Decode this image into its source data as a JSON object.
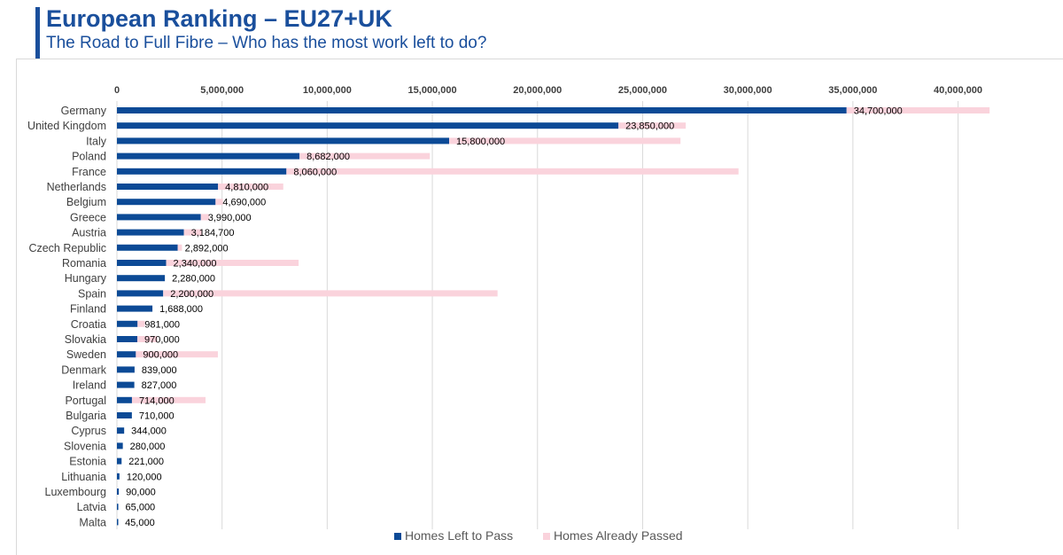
{
  "title": "European Ranking – EU27+UK",
  "subtitle": "The Road to Full Fibre – Who has the most work left to do?",
  "colors": {
    "accent": "#1a4f9c",
    "left_to_pass": "#0c4a96",
    "already_passed": "#fad3dc",
    "gridline": "#d9d9d9",
    "text": "#3f3f3f"
  },
  "chart_data": {
    "type": "bar",
    "orientation": "horizontal",
    "stacked": true,
    "title": "",
    "xlabel": "",
    "ylabel": "",
    "xlim": [
      0,
      42000000
    ],
    "xticks": [
      0,
      5000000,
      10000000,
      15000000,
      20000000,
      25000000,
      30000000,
      35000000,
      40000000
    ],
    "xtick_labels": [
      "0",
      "5,000,000",
      "10,000,000",
      "15,000,000",
      "20,000,000",
      "25,000,000",
      "30,000,000",
      "35,000,000",
      "40,000,000"
    ],
    "grid": true,
    "legend_position": "bottom",
    "categories": [
      "Germany",
      "United Kingdom",
      "Italy",
      "Poland",
      "France",
      "Netherlands",
      "Belgium",
      "Greece",
      "Austria",
      "Czech Republic",
      "Romania",
      "Hungary",
      "Spain",
      "Finland",
      "Croatia",
      "Slovakia",
      "Sweden",
      "Denmark",
      "Ireland",
      "Portugal",
      "Bulgaria",
      "Cyprus",
      "Slovenia",
      "Estonia",
      "Lithuania",
      "Luxembourg",
      "Latvia",
      "Malta"
    ],
    "series": [
      {
        "name": "Homes Left to Pass",
        "color": "#0c4a96",
        "values": [
          34700000,
          23850000,
          15800000,
          8682000,
          8060000,
          4810000,
          4690000,
          3990000,
          3184700,
          2892000,
          2340000,
          2280000,
          2200000,
          1688000,
          981000,
          970000,
          900000,
          839000,
          827000,
          714000,
          710000,
          344000,
          280000,
          221000,
          120000,
          90000,
          65000,
          45000
        ],
        "labels": [
          "34,700,000",
          "23,850,000",
          "15,800,000",
          "8,682,000",
          "8,060,000",
          "4,810,000",
          "4,690,000",
          "3,990,000",
          "3,184,700",
          "2,892,000",
          "2,340,000",
          "2,280,000",
          "2,200,000",
          "1,688,000",
          "981,000",
          "970,000",
          "900,000",
          "839,000",
          "827,000",
          "714,000",
          "710,000",
          "344,000",
          "280,000",
          "221,000",
          "120,000",
          "90,000",
          "65,000",
          "45,000"
        ]
      },
      {
        "name": "Homes Already Passed",
        "color": "#fad3dc",
        "values": [
          6800000,
          3200000,
          11000000,
          6200000,
          21500000,
          3100000,
          350000,
          400000,
          850000,
          200000,
          6300000,
          0,
          15900000,
          0,
          350000,
          950000,
          3900000,
          0,
          0,
          3500000,
          0,
          0,
          0,
          0,
          0,
          0,
          0,
          0
        ]
      }
    ]
  }
}
